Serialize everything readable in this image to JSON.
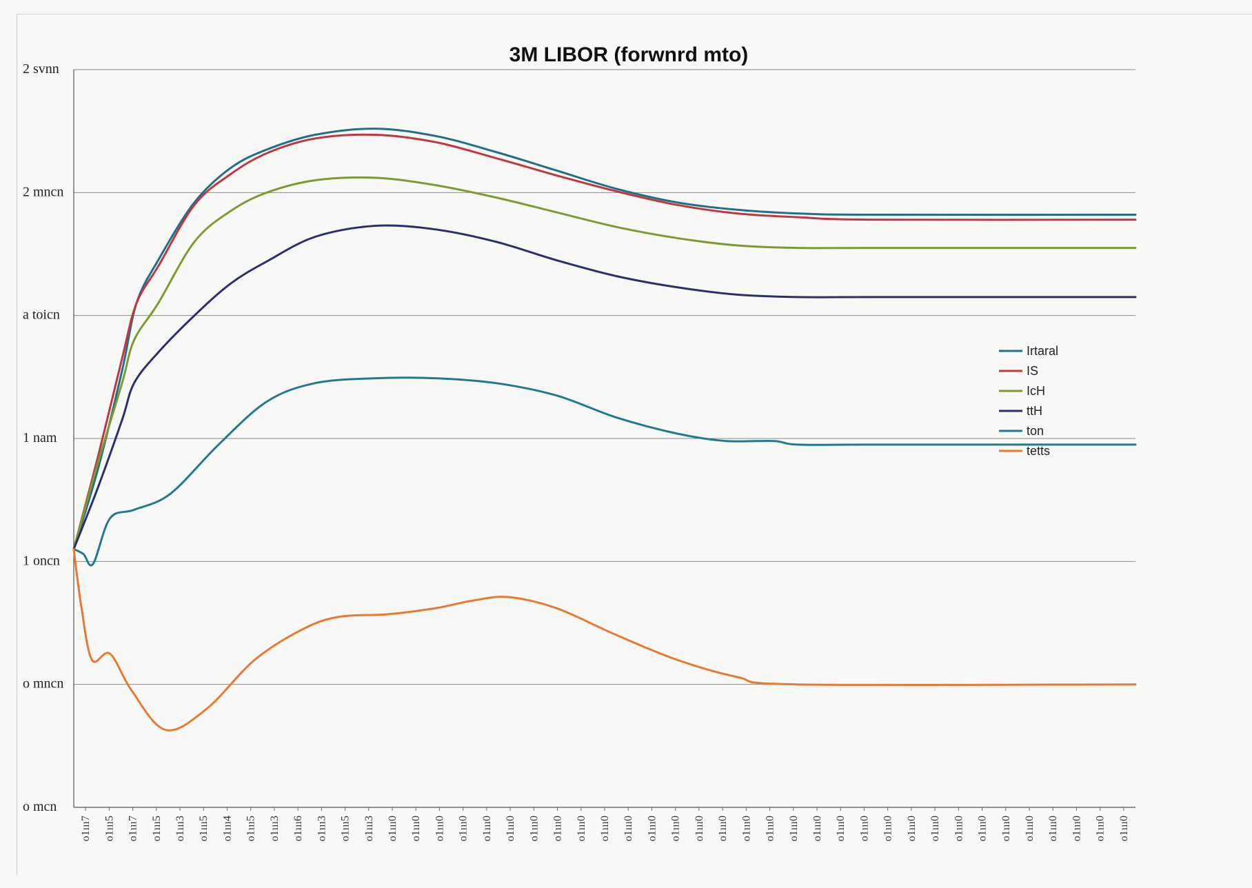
{
  "chart_data": {
    "type": "line",
    "title": "3M LIBOR (forwnrd mto)",
    "xlabel": "",
    "ylabel": "",
    "grid": true,
    "legend_position": "right",
    "y_ticks": [
      "2 svnn",
      "2 mncn",
      "a toicn",
      "1 nam",
      "1 oncn",
      "o mncn",
      "o mcn"
    ],
    "x_ticks": [
      "o1ııı7",
      "o1ııı5",
      "o1ııı7",
      "o1ııı5",
      "o1ııı3",
      "o1ııı5",
      "o1ııı4",
      "o1ııı5",
      "o1ııı3",
      "o1ııı6",
      "o1ııı3",
      "o1ııı5",
      "o1ııı3",
      "o1ııı0",
      "o1ııı0",
      "o1ııı0",
      "o1ııı0",
      "o1ııı0",
      "o1ııı0",
      "o1ııı0",
      "o1ııı0",
      "o1ııı0",
      "o1ııı0",
      "o1ııı0",
      "o1ııı0",
      "o1ııı0",
      "o1ııı0",
      "o1ııı0",
      "o1ııı0",
      "o1ııı0",
      "o1ııı0",
      "o1ııı0",
      "o1ııı0",
      "o1ııı0",
      "o1ııı0",
      "o1ııı0",
      "o1ııı0",
      "o1ııı0",
      "o1ııı0",
      "o1ııı0",
      "o1ııı0",
      "o1ııı0",
      "o1ııı0",
      "o1ııı0",
      "o1ııı0"
    ],
    "y_range": [
      0,
      6
    ],
    "x_range": [
      0,
      44
    ],
    "series": [
      {
        "name": "Irtaral",
        "color": "#1f6f8b",
        "x": [
          0,
          1,
          2,
          2.6,
          3.5,
          5,
          6.5,
          8,
          10,
          12.5,
          15,
          17.5,
          20,
          22.5,
          25,
          27.5,
          30,
          33,
          44
        ],
        "y": [
          2.1,
          2.75,
          3.55,
          4.1,
          4.45,
          4.92,
          5.2,
          5.35,
          5.47,
          5.52,
          5.46,
          5.33,
          5.18,
          5.03,
          4.92,
          4.86,
          4.83,
          4.82,
          4.82
        ]
      },
      {
        "name": "IS",
        "color": "#c0363c",
        "x": [
          0,
          1,
          2,
          2.6,
          3.5,
          5,
          6.5,
          8,
          10,
          12.5,
          15,
          17.5,
          20,
          22.5,
          25,
          27.5,
          30,
          33,
          44
        ],
        "y": [
          2.1,
          2.85,
          3.65,
          4.1,
          4.4,
          4.9,
          5.15,
          5.32,
          5.44,
          5.47,
          5.41,
          5.28,
          5.14,
          5.01,
          4.9,
          4.83,
          4.8,
          4.78,
          4.78
        ]
      },
      {
        "name": "IcH",
        "color": "#7c9a2f",
        "x": [
          0,
          1,
          2,
          2.5,
          3.5,
          5,
          6.5,
          8,
          10,
          12.5,
          15,
          17.5,
          20,
          22.5,
          25,
          27.5,
          30,
          33,
          44
        ],
        "y": [
          2.1,
          2.8,
          3.45,
          3.8,
          4.1,
          4.6,
          4.85,
          5.0,
          5.1,
          5.12,
          5.06,
          4.96,
          4.84,
          4.72,
          4.63,
          4.57,
          4.55,
          4.55,
          4.55
        ]
      },
      {
        "name": "ttH",
        "color": "#2b2d6e",
        "x": [
          0,
          1,
          2,
          2.5,
          3.5,
          5,
          6.5,
          8,
          10,
          12.5,
          15,
          17.5,
          20,
          22.5,
          25,
          27.5,
          30,
          33,
          44
        ],
        "y": [
          2.1,
          2.6,
          3.15,
          3.45,
          3.7,
          4.0,
          4.26,
          4.44,
          4.64,
          4.73,
          4.7,
          4.6,
          4.45,
          4.32,
          4.23,
          4.17,
          4.15,
          4.15,
          4.15
        ]
      },
      {
        "name": "ton",
        "color": "#1f7a8c",
        "x": [
          0,
          0.4,
          0.8,
          1.5,
          2.5,
          4,
          6,
          8,
          10,
          12.5,
          15,
          17.5,
          20,
          22.5,
          25,
          27,
          29,
          30,
          33,
          44
        ],
        "y": [
          2.1,
          2.06,
          1.98,
          2.35,
          2.42,
          2.55,
          2.95,
          3.3,
          3.45,
          3.49,
          3.49,
          3.45,
          3.35,
          3.17,
          3.04,
          2.98,
          2.98,
          2.95,
          2.95,
          2.95
        ]
      },
      {
        "name": "tetts",
        "color": "#e8792f",
        "x": [
          0,
          0.3,
          0.75,
          1.5,
          2.4,
          3.8,
          5.5,
          7.5,
          9.5,
          11,
          13,
          15,
          16.5,
          18,
          20,
          22.5,
          25,
          27.5,
          30,
          44
        ],
        "y": [
          2.1,
          1.65,
          1.2,
          1.25,
          0.95,
          0.63,
          0.8,
          1.2,
          1.45,
          1.55,
          1.57,
          1.62,
          1.68,
          1.71,
          1.62,
          1.4,
          1.2,
          1.06,
          1.0,
          1.0
        ]
      }
    ]
  }
}
